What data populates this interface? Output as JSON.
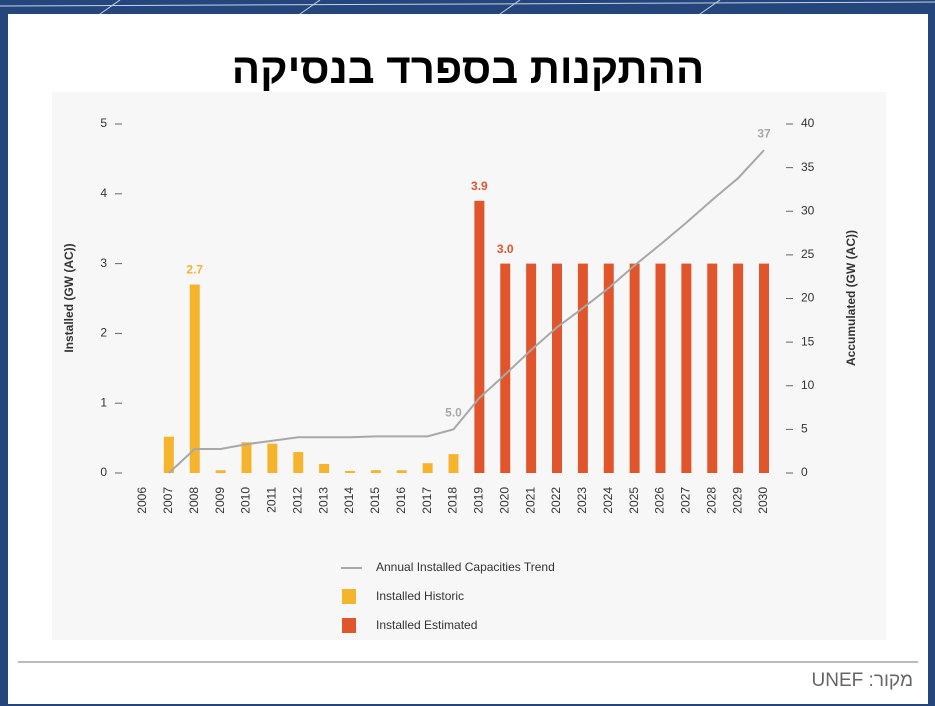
{
  "chart_data": {
    "type": "bar",
    "title": "ההתקנות בספרד בנסיקה",
    "source": "מקור: UNEF",
    "y_label": "Installed (GW (AC))",
    "y2_label": "Accumulated (GW (AC))",
    "categories": [
      "2006",
      "2007",
      "2008",
      "2009",
      "2010",
      "2011",
      "2012",
      "2013",
      "2014",
      "2015",
      "2016",
      "2017",
      "2018",
      "2019",
      "2020",
      "2021",
      "2022",
      "2023",
      "2024",
      "2025",
      "2026",
      "2027",
      "2028",
      "2029",
      "2030"
    ],
    "ylim": [
      0,
      5
    ],
    "yticks": [
      0,
      1,
      2,
      3,
      4,
      5
    ],
    "y2lim": [
      0,
      40
    ],
    "y2ticks": [
      0,
      5,
      10,
      15,
      20,
      25,
      30,
      35,
      40
    ],
    "series": [
      {
        "name": "Installed Historic",
        "color": "#f6b42c",
        "values": [
          null,
          0.52,
          2.7,
          0.04,
          0.44,
          0.42,
          0.3,
          0.13,
          0.03,
          0.04,
          0.04,
          0.14,
          0.27,
          null,
          null,
          null,
          null,
          null,
          null,
          null,
          null,
          null,
          null,
          null,
          null
        ],
        "value_labels": [
          null,
          null,
          "2.7",
          null,
          null,
          null,
          null,
          null,
          null,
          null,
          null,
          null,
          null,
          null,
          null,
          null,
          null,
          null,
          null,
          null,
          null,
          null,
          null,
          null,
          null
        ]
      },
      {
        "name": "Installed Estimated",
        "color": "#e0552c",
        "values": [
          null,
          null,
          null,
          null,
          null,
          null,
          null,
          null,
          null,
          null,
          null,
          null,
          null,
          3.9,
          3.0,
          3.0,
          3.0,
          3.0,
          3.0,
          3.0,
          3.0,
          3.0,
          3.0,
          3.0,
          3.0
        ],
        "value_labels": [
          null,
          null,
          null,
          null,
          null,
          null,
          null,
          null,
          null,
          null,
          null,
          null,
          null,
          "3.9",
          "3.0",
          null,
          null,
          null,
          null,
          null,
          null,
          null,
          null,
          null,
          null
        ]
      },
      {
        "name": "Annual Installed Capacities Trend",
        "color": "#a8a8a8",
        "type": "line",
        "axis": "y2",
        "values": [
          null,
          0,
          2.75,
          2.75,
          3.3,
          3.7,
          4.1,
          4.1,
          4.1,
          4.2,
          4.2,
          4.2,
          5.0,
          8.6,
          11.3,
          14.1,
          16.7,
          18.9,
          21.2,
          23.8,
          26.2,
          28.7,
          31.3,
          33.8,
          37
        ],
        "value_labels": [
          null,
          null,
          null,
          null,
          null,
          null,
          null,
          null,
          null,
          null,
          null,
          null,
          "5.0",
          null,
          null,
          null,
          null,
          null,
          null,
          null,
          null,
          null,
          null,
          null,
          "37"
        ]
      }
    ],
    "legend_order": [
      2,
      0,
      1
    ]
  }
}
